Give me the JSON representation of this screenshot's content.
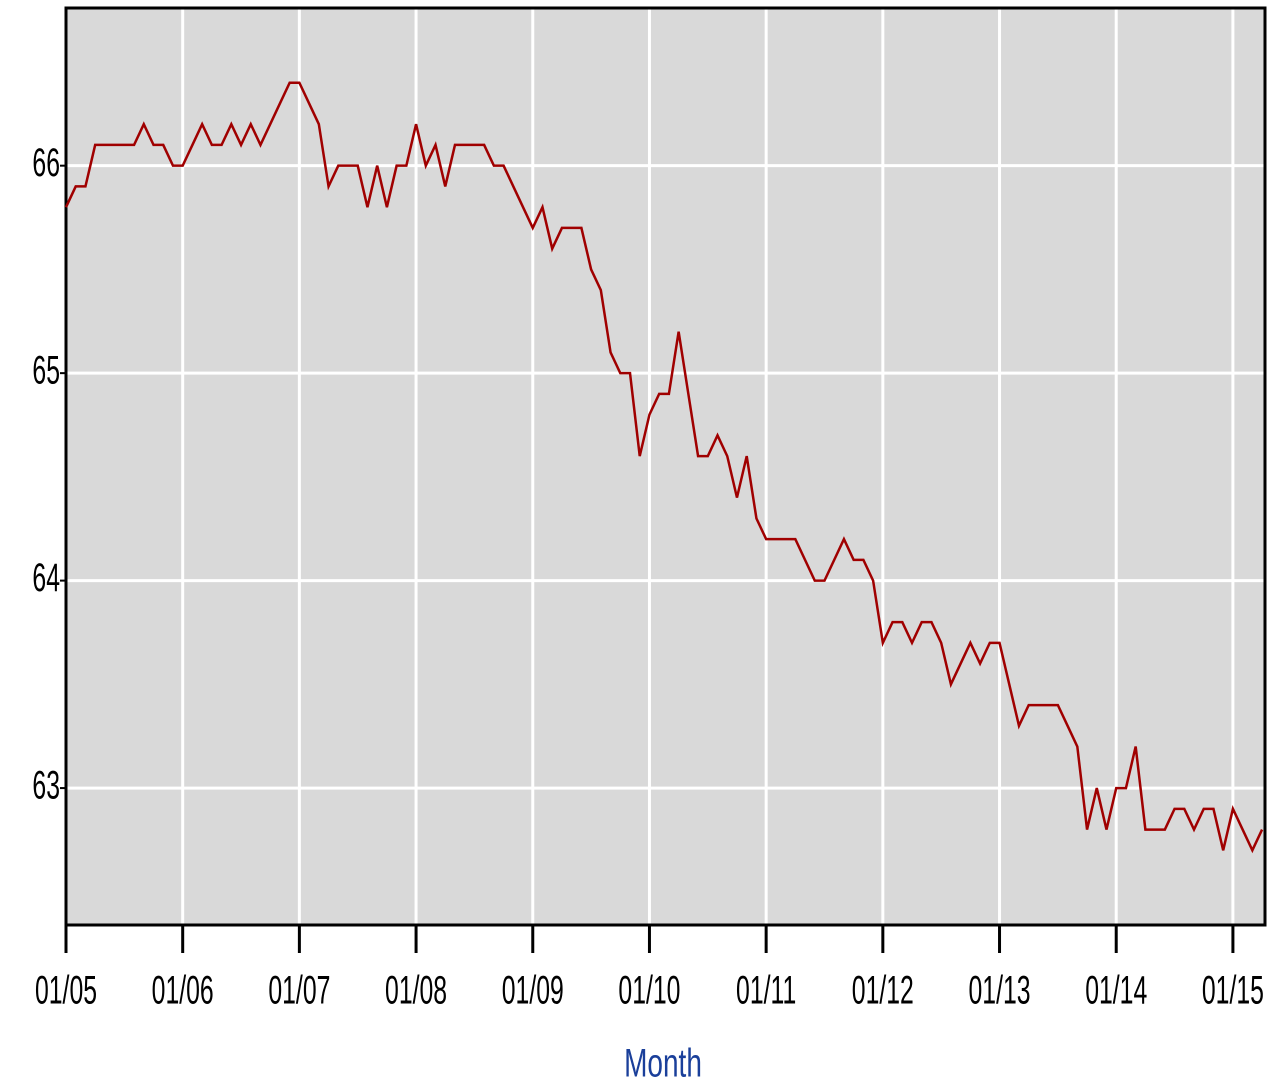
{
  "chart_data": {
    "type": "line",
    "x_label": "Month",
    "color": "#a00000",
    "categories": [
      "01/05",
      null,
      null,
      null,
      null,
      null,
      null,
      null,
      null,
      null,
      null,
      null,
      "01/06",
      null,
      null,
      null,
      null,
      null,
      null,
      null,
      null,
      null,
      null,
      null,
      "01/07",
      null,
      null,
      null,
      null,
      null,
      null,
      null,
      null,
      null,
      null,
      null,
      "01/08",
      null,
      null,
      null,
      null,
      null,
      null,
      null,
      null,
      null,
      null,
      null,
      "01/09",
      null,
      null,
      null,
      null,
      null,
      null,
      null,
      null,
      null,
      null,
      null,
      "01/10",
      null,
      null,
      null,
      null,
      null,
      null,
      null,
      null,
      null,
      null,
      null,
      "01/11",
      null,
      null,
      null,
      null,
      null,
      null,
      null,
      null,
      null,
      null,
      null,
      "01/12",
      null,
      null,
      null,
      null,
      null,
      null,
      null,
      null,
      null,
      null,
      null,
      "01/13",
      null,
      null,
      null,
      null,
      null,
      null,
      null,
      null,
      null,
      null,
      null,
      "01/14",
      null,
      null,
      null,
      null,
      null,
      null,
      null,
      null,
      null,
      null,
      null,
      "01/15",
      null,
      null,
      null
    ],
    "values": [
      65.8,
      65.9,
      65.9,
      66.1,
      66.1,
      66.1,
      66.1,
      66.1,
      66.2,
      66.1,
      66.1,
      66.0,
      66.0,
      66.1,
      66.2,
      66.1,
      66.1,
      66.2,
      66.1,
      66.2,
      66.1,
      66.2,
      66.3,
      66.4,
      66.4,
      66.3,
      66.2,
      65.9,
      66.0,
      66.0,
      66.0,
      65.8,
      66.0,
      65.8,
      66.0,
      66.0,
      66.2,
      66.0,
      66.1,
      65.9,
      66.1,
      66.1,
      66.1,
      66.1,
      66.0,
      66.0,
      65.9,
      65.8,
      65.7,
      65.8,
      65.6,
      65.7,
      65.7,
      65.7,
      65.5,
      65.4,
      65.1,
      65.0,
      65.0,
      64.6,
      64.8,
      64.9,
      64.9,
      65.2,
      64.9,
      64.6,
      64.6,
      64.7,
      64.6,
      64.4,
      64.6,
      64.3,
      64.2,
      64.2,
      64.2,
      64.2,
      64.1,
      64.0,
      64.0,
      64.1,
      64.2,
      64.1,
      64.1,
      64.0,
      63.7,
      63.8,
      63.8,
      63.7,
      63.8,
      63.8,
      63.7,
      63.5,
      63.6,
      63.7,
      63.6,
      63.7,
      63.7,
      63.5,
      63.3,
      63.4,
      63.4,
      63.4,
      63.4,
      63.3,
      63.2,
      62.8,
      63.0,
      62.8,
      63.0,
      63.0,
      63.2,
      62.8,
      62.8,
      62.8,
      62.9,
      62.9,
      62.8,
      62.9,
      62.9,
      62.7,
      62.9,
      62.8,
      62.7,
      62.8
    ],
    "ylim": [
      62.34,
      66.76
    ],
    "yticks": [
      63,
      64,
      65,
      66
    ],
    "grid": true
  }
}
